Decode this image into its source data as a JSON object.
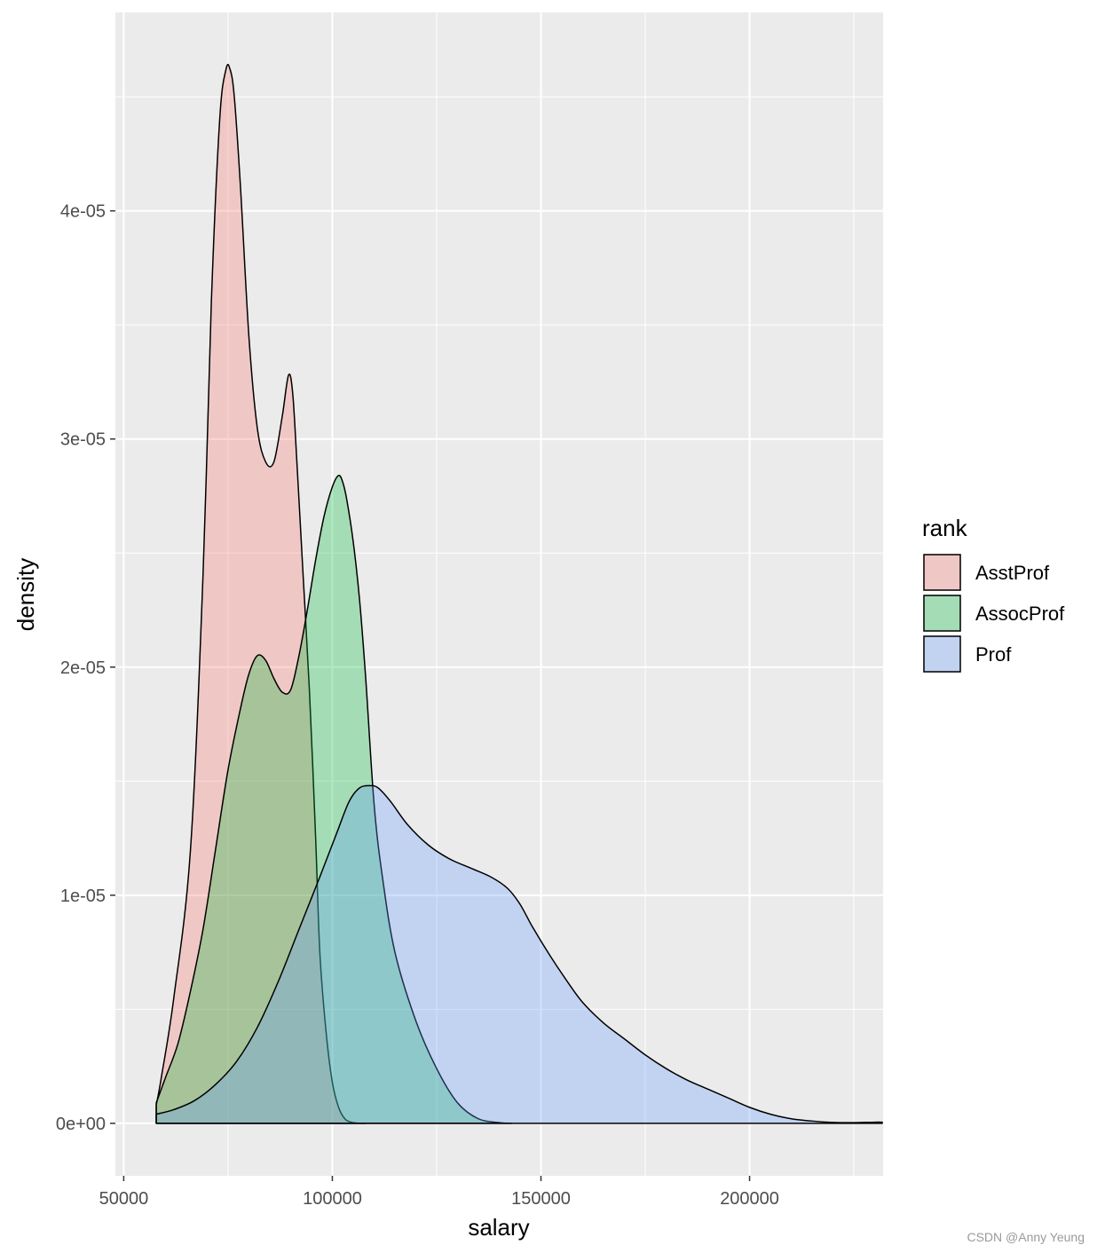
{
  "chart_data": {
    "type": "area",
    "xlabel": "salary",
    "ylabel": "density",
    "xlim": [
      48000,
      232000
    ],
    "ylim": [
      -2.3e-06,
      4.87e-05
    ],
    "x_ticks": [
      50000,
      100000,
      150000,
      200000
    ],
    "x_tick_labels": [
      "50000",
      "100000",
      "150000",
      "200000"
    ],
    "y_ticks": [
      0,
      1e-05,
      2e-05,
      3e-05,
      4e-05
    ],
    "y_tick_labels": [
      "0e+00",
      "1e-05",
      "2e-05",
      "3e-05",
      "4e-05"
    ],
    "grid": true,
    "panel_background": "#ebebeb",
    "legend": {
      "title": "rank",
      "position": "right",
      "entries": [
        "AsstProf",
        "AssocProf",
        "Prof"
      ]
    },
    "series": [
      {
        "name": "AsstProf",
        "color": "#f8766d",
        "fill_alpha": 0.3,
        "x": [
          57800,
          59000,
          62000,
          66000,
          69000,
          71000,
          73000,
          74500,
          75500,
          76500,
          78000,
          80000,
          82000,
          84000,
          86000,
          88000,
          89500,
          90500,
          91500,
          93000,
          94500,
          96000,
          97000,
          98500,
          100000,
          101500,
          103000,
          104500,
          106000,
          108000
        ],
        "values": [
          8e-07,
          2e-06,
          5.5e-06,
          1.2e-05,
          2.4e-05,
          3.6e-05,
          4.4e-05,
          4.62e-05,
          4.62e-05,
          4.5e-05,
          4.1e-05,
          3.45e-05,
          3.05e-05,
          2.9e-05,
          2.9e-05,
          3.1e-05,
          3.28e-05,
          3.2e-05,
          2.9e-05,
          2.4e-05,
          1.9e-05,
          1.25e-05,
          7.5e-06,
          4e-06,
          1.8e-06,
          7e-07,
          2e-07,
          5e-08,
          1e-08,
          0.0
        ]
      },
      {
        "name": "AssocProf",
        "color": "#00ba38",
        "fill_alpha": 0.3,
        "x": [
          57800,
          60000,
          63000,
          66000,
          69000,
          72000,
          75000,
          78000,
          80000,
          82000,
          84000,
          86000,
          88000,
          90000,
          92000,
          94000,
          96000,
          98000,
          100000,
          101500,
          102500,
          103500,
          105000,
          106500,
          108000,
          110000,
          112000,
          115000,
          120000,
          125000,
          130000,
          135000,
          140000,
          143000
        ],
        "values": [
          9e-07,
          2e-06,
          3.5e-06,
          5.8e-06,
          8.5e-06,
          1.2e-05,
          1.55e-05,
          1.82e-05,
          1.97e-05,
          2.05e-05,
          2.03e-05,
          1.95e-05,
          1.89e-05,
          1.9e-05,
          2.05e-05,
          2.25e-05,
          2.47e-05,
          2.66e-05,
          2.79e-05,
          2.84e-05,
          2.81e-05,
          2.73e-05,
          2.55e-05,
          2.3e-05,
          1.95e-05,
          1.4e-05,
          1.08e-05,
          7.5e-06,
          4.5e-06,
          2.4e-06,
          9e-07,
          2e-07,
          3e-08,
          0.0
        ]
      },
      {
        "name": "Prof",
        "color": "#619cff",
        "fill_alpha": 0.3,
        "x": [
          57800,
          62000,
          67000,
          72000,
          77000,
          82000,
          87000,
          92000,
          97000,
          101000,
          104000,
          106500,
          109000,
          111000,
          114000,
          118000,
          123000,
          128000,
          133000,
          138000,
          142000,
          145000,
          148000,
          152000,
          156000,
          160000,
          165000,
          170000,
          175000,
          180000,
          185000,
          190000,
          195000,
          200000,
          205000,
          210000,
          215000,
          220000,
          225000,
          230000,
          231800
        ],
        "values": [
          4e-07,
          6e-07,
          1e-06,
          1.7e-06,
          2.7e-06,
          4.2e-06,
          6.2e-06,
          8.5e-06,
          1.08e-05,
          1.27e-05,
          1.41e-05,
          1.47e-05,
          1.48e-05,
          1.47e-05,
          1.41e-05,
          1.31e-05,
          1.22e-05,
          1.16e-05,
          1.12e-05,
          1.08e-05,
          1.03e-05,
          9.6e-06,
          8.6e-06,
          7.4e-06,
          6.3e-06,
          5.3e-06,
          4.4e-06,
          3.7e-06,
          3e-06,
          2.4e-06,
          1.9e-06,
          1.5e-06,
          1.1e-06,
          7e-07,
          4e-07,
          2e-07,
          1e-07,
          4e-08,
          3e-08,
          5e-08,
          5e-08
        ]
      }
    ]
  },
  "watermark": "CSDN @Anny Yeung"
}
